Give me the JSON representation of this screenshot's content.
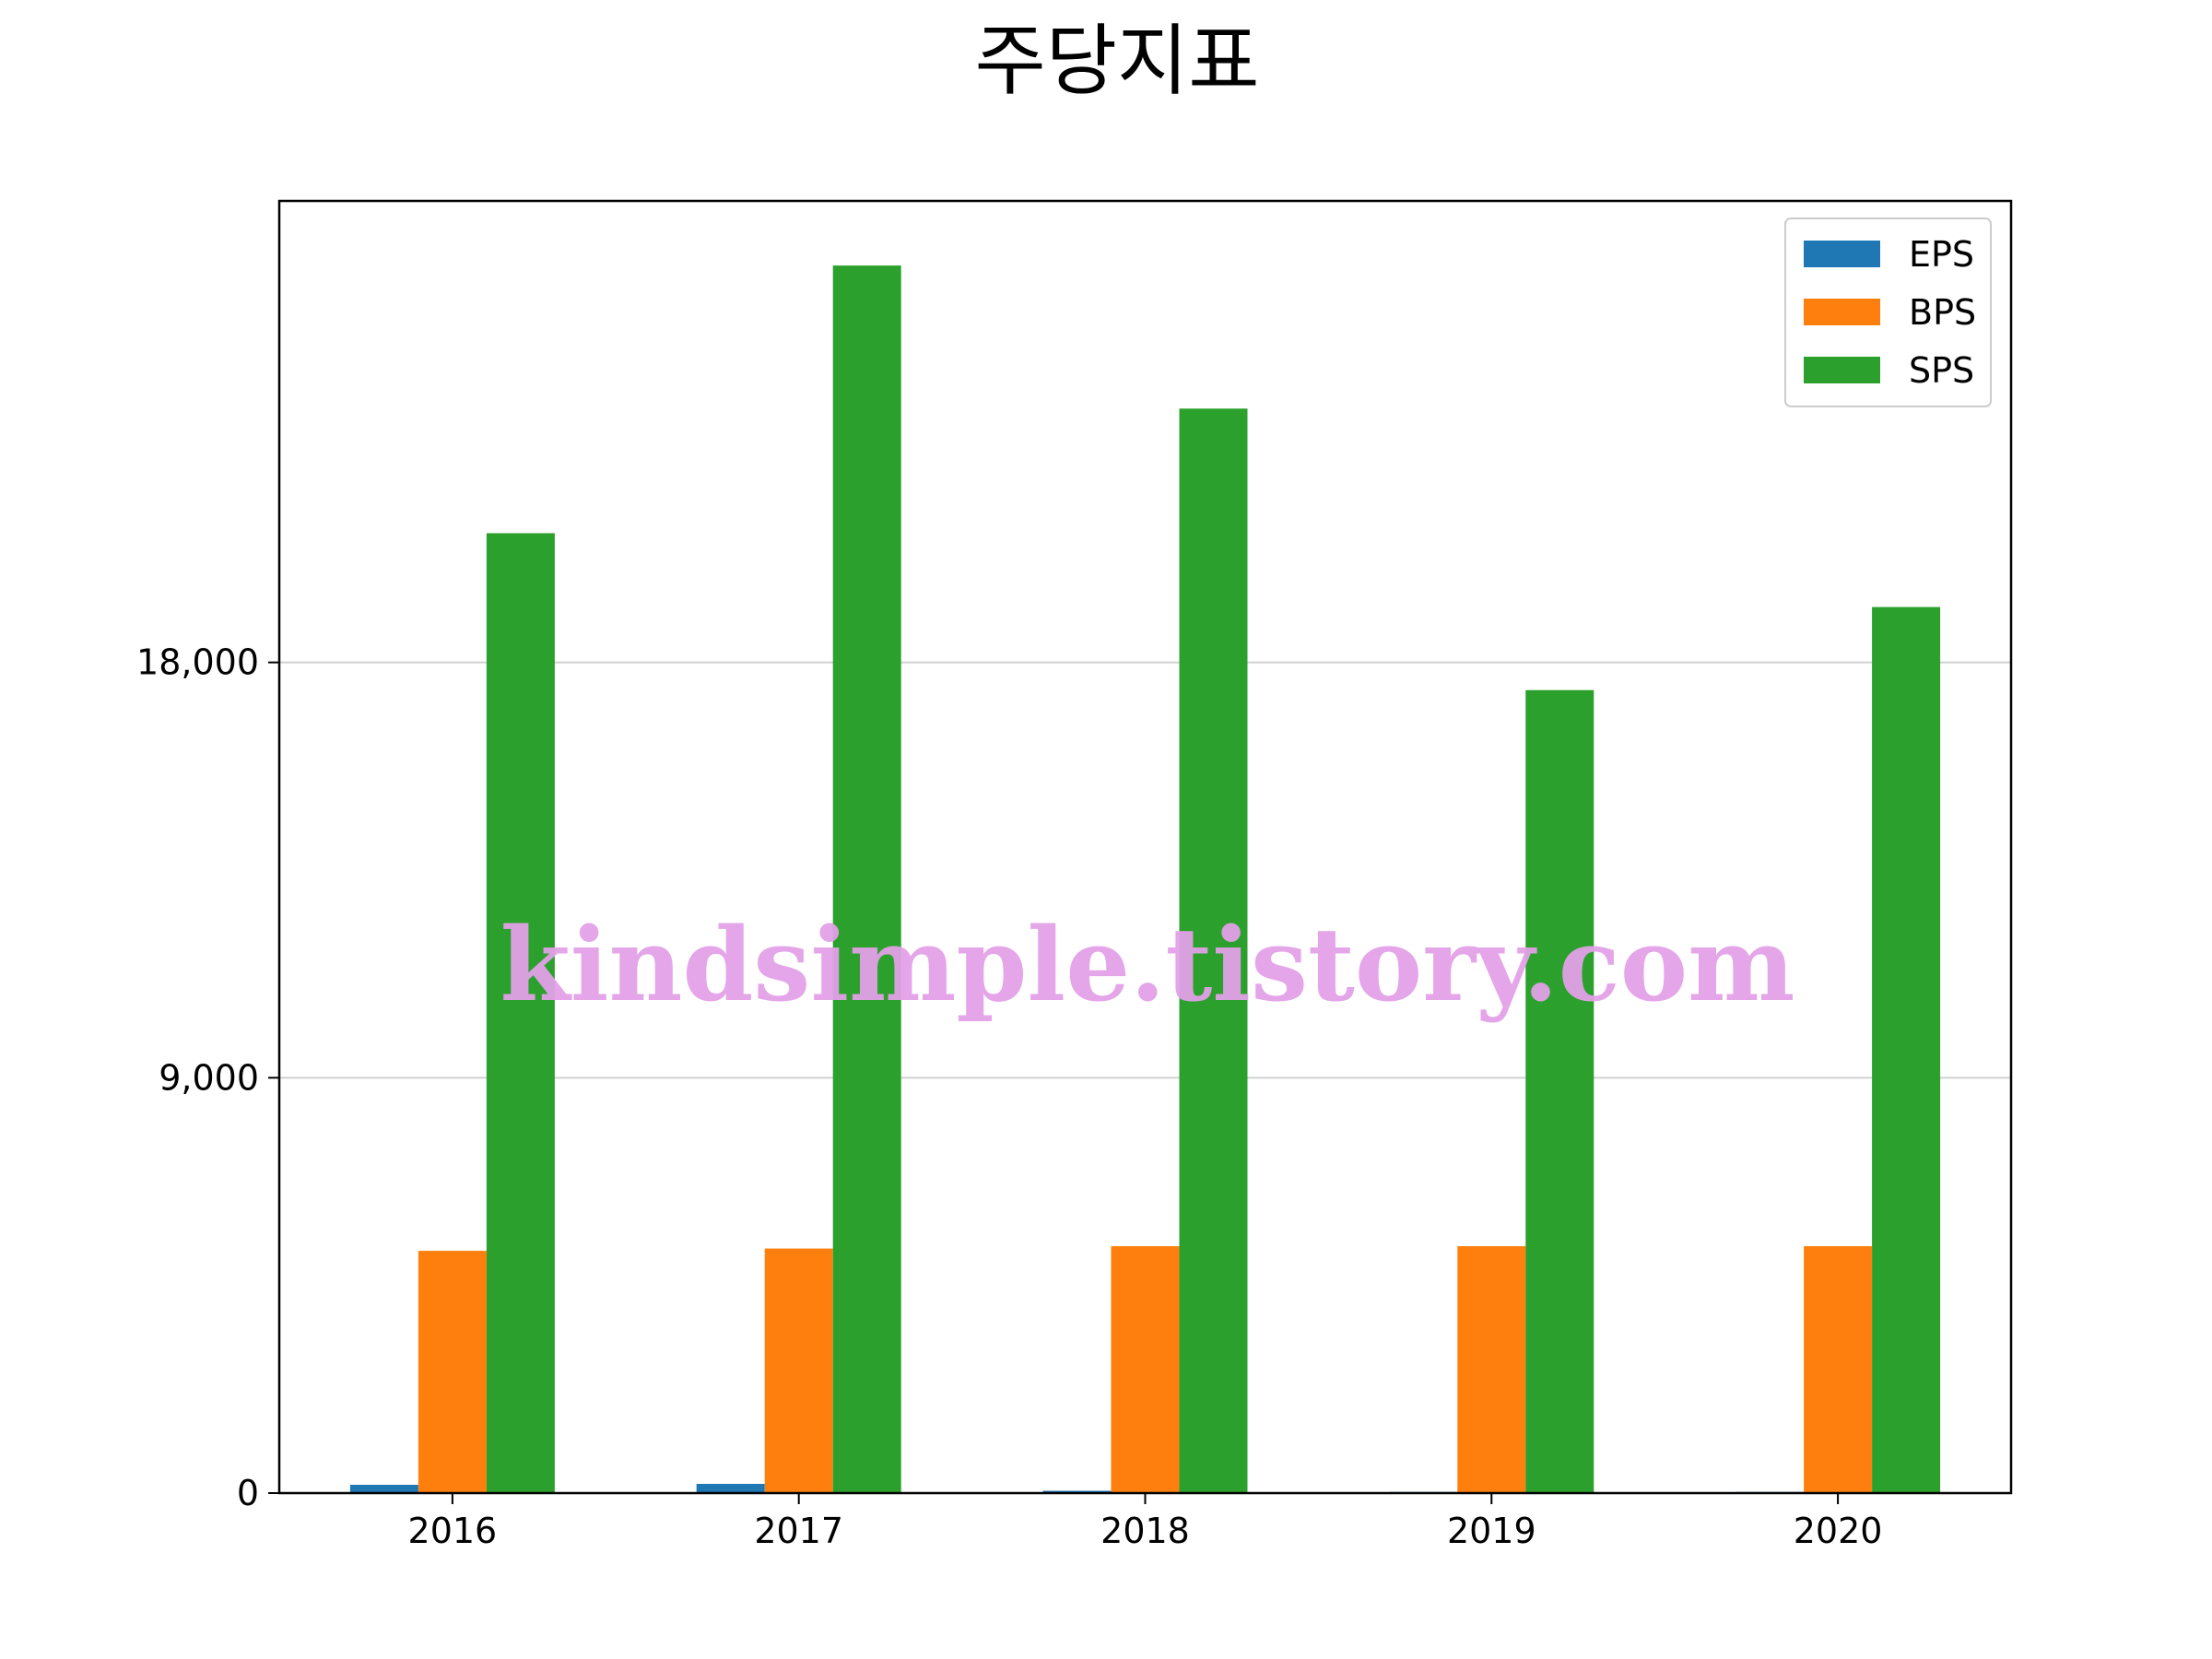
{
  "chart_data": {
    "type": "bar",
    "title": "주당지표",
    "xlabel": "",
    "ylabel": "",
    "categories": [
      "2016",
      "2017",
      "2018",
      "2019",
      "2020"
    ],
    "series": [
      {
        "name": "EPS",
        "color": "#1f77b4",
        "values": [
          180,
          200,
          50,
          25,
          25
        ]
      },
      {
        "name": "BPS",
        "color": "#ff7f0e",
        "values": [
          5250,
          5300,
          5350,
          5350,
          5350
        ]
      },
      {
        "name": "SPS",
        "color": "#2ca02c",
        "values": [
          20800,
          26600,
          23500,
          17400,
          19200
        ]
      }
    ],
    "ylim": [
      0,
      28000
    ],
    "yticks": [
      0,
      9000,
      18000
    ],
    "ytick_labels": [
      "0",
      "9,000",
      "18,000"
    ],
    "grid": "y",
    "legend": "top-right",
    "watermark": "kindsimple.tistory.com"
  }
}
